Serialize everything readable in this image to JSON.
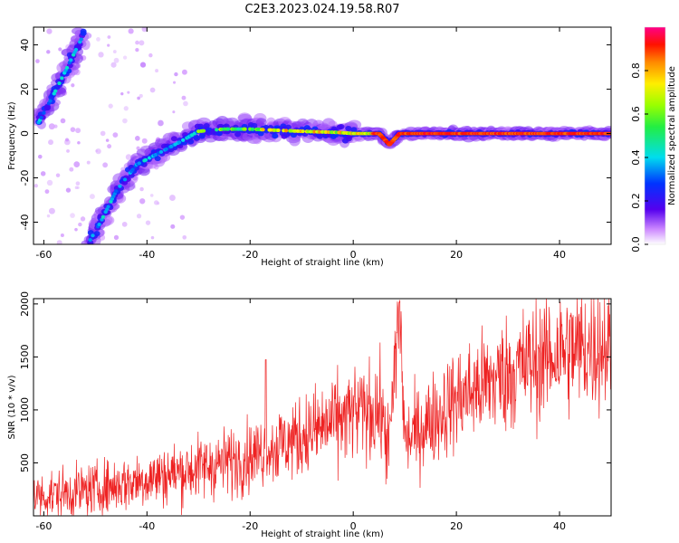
{
  "title": "C2E3.2023.024.19.58.R07",
  "colors": {
    "snr_line": "#ee2222",
    "axes": "#000000",
    "background": "#ffffff"
  },
  "chart_data": [
    {
      "type": "heatmap",
      "xlabel": "Height of straight line (km)",
      "ylabel": "Frequency (Hz)",
      "xlim": [
        -62,
        50
      ],
      "ylim": [
        -50,
        48
      ],
      "xticks": [
        "-60",
        "-40",
        "-20",
        "0",
        "20",
        "40"
      ],
      "yticks": [
        "-40",
        "-20",
        "0",
        "20",
        "40"
      ],
      "colorbar": {
        "label": "Normalized spectral amplitude",
        "range": [
          0,
          1
        ],
        "ticks": [
          "0.0",
          "0.2",
          "0.4",
          "0.6",
          "0.8"
        ],
        "colormap": "rainbow (white → violet → blue → cyan → green → yellow → orange → red → magenta)"
      },
      "features": [
        {
          "name": "high-height branch",
          "points": [
            [
              -61,
              5
            ],
            [
              -58,
              18
            ],
            [
              -55,
              32
            ],
            [
              -52,
              46
            ]
          ]
        },
        {
          "name": "converging branch",
          "points": [
            [
              -51,
              -48
            ],
            [
              -49,
              -40
            ],
            [
              -46,
              -26
            ],
            [
              -42,
              -14
            ],
            [
              -37,
              -8
            ],
            [
              -33,
              -3
            ],
            [
              -30,
              1
            ],
            [
              -25,
              2
            ],
            [
              -20,
              2
            ],
            [
              -10,
              1
            ],
            [
              -3,
              0.5
            ],
            [
              0,
              0
            ],
            [
              5,
              0
            ],
            [
              7,
              -5
            ],
            [
              9,
              0
            ],
            [
              20,
              0
            ],
            [
              50,
              0
            ]
          ]
        }
      ]
    },
    {
      "type": "line",
      "xlabel": "Height of straight line (km)",
      "ylabel": "SNR (10 * v/v)",
      "xlim": [
        -62,
        50
      ],
      "ylim": [
        0,
        2050
      ],
      "xticks": [
        "-60",
        "-40",
        "-20",
        "0",
        "20",
        "40"
      ],
      "yticks": [
        "500",
        "1000",
        "1500",
        "2000"
      ],
      "trend": {
        "x": [
          -62,
          -50,
          -40,
          -30,
          -20,
          -10,
          0,
          5,
          7,
          9,
          10,
          20,
          30,
          40,
          50
        ],
        "y": [
          180,
          250,
          350,
          450,
          560,
          750,
          960,
          1000,
          650,
          2000,
          700,
          1100,
          1350,
          1550,
          1620
        ]
      },
      "notable_peaks": [
        {
          "x": -17,
          "y": 1480
        },
        {
          "x": 9,
          "y": 2040
        }
      ]
    }
  ]
}
